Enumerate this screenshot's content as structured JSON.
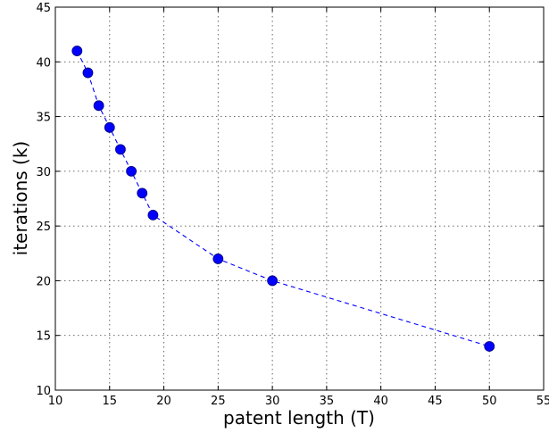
{
  "chart_data": {
    "type": "line",
    "title": "",
    "xlabel": "patent length (T)",
    "ylabel": "iterations (k)",
    "xlim": [
      10,
      55
    ],
    "ylim": [
      10,
      45
    ],
    "xticks": [
      "10",
      "15",
      "20",
      "25",
      "30",
      "35",
      "40",
      "45",
      "50",
      "55"
    ],
    "yticks": [
      "10",
      "15",
      "20",
      "25",
      "30",
      "35",
      "40",
      "45"
    ],
    "grid": true,
    "series": [
      {
        "color": "#0000ff",
        "line_style": "dashed",
        "marker": "circle",
        "x": [
          12,
          13,
          14,
          15,
          16,
          17,
          18,
          19,
          25,
          30,
          50
        ],
        "y": [
          41,
          39,
          36,
          34,
          32,
          30,
          28,
          26,
          22,
          20,
          14
        ]
      }
    ]
  }
}
